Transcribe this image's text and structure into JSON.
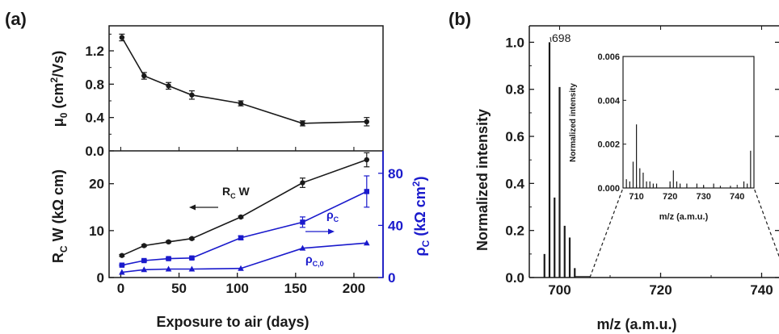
{
  "colors": {
    "black": "#1a1a1a",
    "blue": "#1a1acc"
  },
  "panel_labels": {
    "a": "(a)",
    "b": "(b)"
  },
  "chart_data": [
    {
      "id": "a-top",
      "type": "line",
      "xlim": [
        -10,
        225
      ],
      "ylim": [
        0.0,
        1.5
      ],
      "yticks": [
        "0.0",
        "0.4",
        "0.8",
        "1.2"
      ],
      "ytick_values": [
        0.0,
        0.4,
        0.8,
        1.2
      ],
      "ylabel": {
        "main": "μ",
        "sub": "0",
        "rest": " (cm",
        "sup": "2",
        "end": "/Vs)"
      },
      "series": [
        {
          "x": [
            1,
            20,
            41,
            61,
            103,
            156,
            211
          ],
          "y": [
            1.36,
            0.9,
            0.78,
            0.67,
            0.57,
            0.33,
            0.35
          ],
          "err": [
            0.04,
            0.04,
            0.04,
            0.05,
            0.03,
            0.03,
            0.05
          ],
          "marker": "circle"
        }
      ]
    },
    {
      "id": "a-bottom",
      "type": "line",
      "xlim": [
        -10,
        225
      ],
      "xticks": [
        "0",
        "50",
        "100",
        "150",
        "200"
      ],
      "xtick_values": [
        0,
        50,
        100,
        150,
        200
      ],
      "xlabel": "Exposure to air (days)",
      "ylim": [
        0,
        27
      ],
      "yticks": [
        "0",
        "10",
        "20"
      ],
      "ytick_values": [
        0,
        10,
        20
      ],
      "ylabel": {
        "main": "R",
        "sub": "C",
        "rest": " W (kΩ cm)"
      },
      "y2lim": [
        0,
        97.2
      ],
      "y2ticks": [
        "0",
        "40",
        "80"
      ],
      "y2tick_values": [
        0,
        40,
        80
      ],
      "y2label": {
        "main": "ρ",
        "sub": "C",
        "rest": " (kΩ cm",
        "sup": "2",
        "end": ")"
      },
      "annotations": {
        "rcw": {
          "main": "R",
          "sub": "C",
          "rest": " W"
        },
        "rhoc": {
          "main": "ρ",
          "sub": "C"
        },
        "rhoc0": {
          "main": "ρ",
          "sub": "C,0"
        }
      },
      "series": [
        {
          "axis": "left",
          "x": [
            1,
            20,
            41,
            61,
            103,
            156,
            211
          ],
          "y": [
            4.7,
            6.8,
            7.6,
            8.3,
            12.9,
            20.2,
            25.1
          ],
          "err": [
            0.2,
            0.2,
            0.2,
            0.2,
            0.2,
            1.0,
            1.5
          ],
          "marker": "circle",
          "color": "black"
        },
        {
          "axis": "right",
          "x": [
            1,
            20,
            41,
            61,
            103,
            156,
            211
          ],
          "y": [
            9.5,
            13.0,
            14.5,
            15.0,
            30.5,
            42.5,
            66.0
          ],
          "err": [
            0.5,
            0.8,
            0.8,
            0.8,
            1.5,
            4.0,
            12.0
          ],
          "marker": "square",
          "color": "blue"
        },
        {
          "axis": "right",
          "x": [
            1,
            20,
            41,
            61,
            103,
            156,
            211
          ],
          "y": [
            4.0,
            6.0,
            6.5,
            6.5,
            7.0,
            22.5,
            26.5
          ],
          "err": [
            0,
            0,
            0,
            0,
            0,
            0,
            0
          ],
          "marker": "triangle",
          "color": "blue"
        }
      ]
    },
    {
      "id": "b-main",
      "type": "bar",
      "xlim": [
        694,
        750
      ],
      "xticks": [
        "700",
        "720",
        "740"
      ],
      "xtick_values": [
        700,
        720,
        740
      ],
      "xlabel": "m/z (a.m.u.)",
      "ylim": [
        0,
        1.07
      ],
      "yticks": [
        "0.0",
        "0.2",
        "0.4",
        "0.6",
        "0.8",
        "1.0"
      ],
      "ytick_values": [
        0.0,
        0.2,
        0.4,
        0.6,
        0.8,
        1.0
      ],
      "ylabel": "Normalized intensity",
      "peak_label": "698",
      "peaks": {
        "x": [
          697,
          698,
          699,
          700,
          701,
          702,
          703
        ],
        "y": [
          0.1,
          1.0,
          0.34,
          0.81,
          0.22,
          0.17,
          0.04
        ]
      }
    },
    {
      "id": "b-inset",
      "type": "bar",
      "xlim": [
        706,
        745
      ],
      "xticks": [
        "710",
        "720",
        "730",
        "740"
      ],
      "xtick_values": [
        710,
        720,
        730,
        740
      ],
      "xlabel": "m/z (a.m.u.)",
      "ylim": [
        0,
        0.006
      ],
      "yticks": [
        "0.000",
        "0.002",
        "0.004",
        "0.006"
      ],
      "ytick_values": [
        0.0,
        0.002,
        0.004,
        0.006
      ],
      "ylabel": "Normalized intensity",
      "peaks": {
        "x": [
          707,
          708,
          709,
          710,
          711,
          712,
          713,
          714,
          715,
          716,
          720,
          721,
          722,
          723,
          725,
          728,
          730,
          733,
          735,
          738,
          742,
          743,
          744
        ],
        "y": [
          0.0004,
          0.0003,
          0.0012,
          0.0029,
          0.0009,
          0.0007,
          0.0003,
          0.0003,
          0.0002,
          0.0002,
          0.0003,
          0.0008,
          0.0003,
          0.0002,
          0.0002,
          0.0002,
          0.0001,
          0.0002,
          0.0001,
          0.0001,
          0.0003,
          0.0002,
          0.0017
        ]
      }
    }
  ]
}
